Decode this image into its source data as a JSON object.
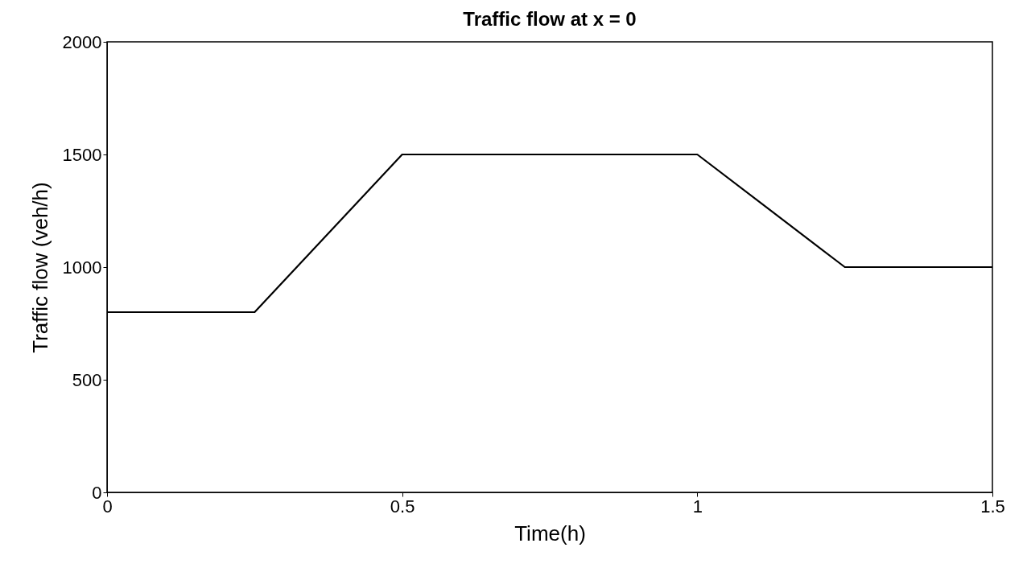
{
  "chart_data": {
    "type": "line",
    "title": "Traffic flow at x = 0",
    "xlabel": "Time(h)",
    "ylabel": "Traffic flow (veh/h)",
    "x": [
      0,
      0.25,
      0.5,
      1,
      1.25,
      1.5
    ],
    "series": [
      {
        "color": "#000000",
        "values": [
          800,
          800,
          1500,
          1500,
          1000,
          1000
        ]
      }
    ],
    "xlim": [
      0,
      1.5
    ],
    "xticks": [
      0,
      0.5,
      1,
      1.5
    ],
    "ylim": [
      0,
      2000
    ],
    "yticks": [
      0,
      500,
      1000,
      1500,
      2000
    ],
    "grid": false,
    "legend": false,
    "marker": "none",
    "line_style": "solid"
  }
}
